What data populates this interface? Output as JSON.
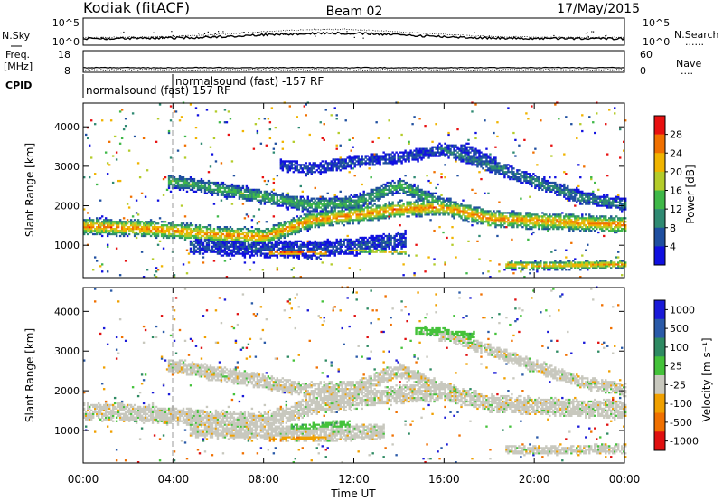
{
  "header": {
    "station": "Kodiak (fitACF)",
    "beam": "Beam 02",
    "date": "17/May/2015"
  },
  "noise_panel": {
    "left_label": "N.Sky",
    "right_label": "N.Search",
    "right_legend": "......",
    "y_ticks": [
      "10^5",
      "10^0"
    ],
    "y_tick_values": [
      100000,
      1
    ]
  },
  "freq_panel": {
    "left_label_1": "Freq.",
    "left_label_2": "[MHz]",
    "right_label": "Nave",
    "right_legend": "....",
    "left_ticks": [
      "18",
      "8"
    ],
    "right_ticks": [
      "60",
      "0"
    ]
  },
  "cpid": {
    "label": "CPID",
    "segments": [
      {
        "text": "normalsound (fast) 157 RF",
        "start": "00:00",
        "end": "04:00"
      },
      {
        "text": "normalsound (fast) -157 RF",
        "start": "04:00",
        "end": "24:00"
      }
    ]
  },
  "chart_data": [
    {
      "type": "heatmap",
      "parameter": "Power",
      "ylabel": "Slant Range [km]",
      "ylim": [
        180,
        4600
      ],
      "y_ticks": [
        "1000",
        "2000",
        "3000",
        "4000"
      ],
      "y_tick_values": [
        1000,
        2000,
        3000,
        4000
      ],
      "x_ticks": [
        "00:00",
        "04:00",
        "08:00",
        "12:00",
        "16:00",
        "20:00",
        "00:00"
      ],
      "x_tick_hours": [
        0,
        4,
        8,
        12,
        16,
        20,
        24
      ],
      "colorbar": {
        "label": "Power [dB]",
        "ticks": [
          "4",
          "8",
          "12",
          "16",
          "20",
          "24",
          "28"
        ],
        "tick_values": [
          4,
          8,
          12,
          16,
          20,
          24,
          28
        ],
        "range": [
          0,
          32
        ],
        "colors": [
          "#1010e0",
          "#1f4fa0",
          "#2f8a72",
          "#3fb848",
          "#b4cc2a",
          "#f0b400",
          "#f07000",
          "#e81010"
        ]
      },
      "bands": [
        {
          "x": [
            0,
            2,
            4,
            6,
            8,
            10,
            12,
            14,
            16,
            18,
            20,
            22,
            24
          ],
          "y": [
            1450,
            1430,
            1350,
            1250,
            1200,
            1600,
            1750,
            1900,
            1950,
            1650,
            1600,
            1550,
            1500
          ],
          "half_width": 150,
          "value": 26
        },
        {
          "x": [
            8.5,
            9.5,
            10.5
          ],
          "y": [
            800,
            800,
            800
          ],
          "half_width": 60,
          "value": 30
        },
        {
          "x": [
            12,
            13,
            14
          ],
          "y": [
            850,
            830,
            800
          ],
          "half_width": 40,
          "value": 22
        },
        {
          "x": [
            19,
            20,
            21,
            22,
            24
          ],
          "y": [
            480,
            460,
            470,
            480,
            500
          ],
          "half_width": 80,
          "value": 24
        },
        {
          "x": [
            4,
            6,
            8,
            10,
            12,
            14,
            16
          ],
          "y": [
            2600,
            2400,
            2200,
            2000,
            2050,
            2500,
            2000
          ],
          "half_width": 130,
          "value": 14
        },
        {
          "x": [
            16,
            18,
            20,
            22,
            24
          ],
          "y": [
            3400,
            3000,
            2600,
            2200,
            2000
          ],
          "half_width": 120,
          "value": 10
        },
        {
          "x": [
            9,
            10,
            12,
            14,
            16,
            17,
            18
          ],
          "y": [
            3000,
            2900,
            3100,
            3200,
            3400,
            3400,
            3100
          ],
          "half_width": 110,
          "value": 6
        },
        {
          "x": [
            5,
            6,
            8,
            10,
            12,
            14
          ],
          "y": [
            1000,
            950,
            900,
            850,
            950,
            1100
          ],
          "half_width": 160,
          "value": 6
        }
      ]
    },
    {
      "type": "heatmap",
      "parameter": "Velocity",
      "ylabel": "Slant Range [km]",
      "ylim": [
        180,
        4600
      ],
      "y_ticks": [
        "1000",
        "2000",
        "3000",
        "4000"
      ],
      "y_tick_values": [
        1000,
        2000,
        3000,
        4000
      ],
      "x_ticks": [
        "00:00",
        "04:00",
        "08:00",
        "12:00",
        "16:00",
        "20:00",
        "00:00"
      ],
      "x_tick_hours": [
        0,
        4,
        8,
        12,
        16,
        20,
        24
      ],
      "xlabel": "Time UT",
      "colorbar": {
        "label": "Velocity [m s⁻¹]",
        "ticks": [
          "1000",
          "500",
          "100",
          "25",
          "-25",
          "-100",
          "-500",
          "-1000"
        ],
        "tick_values": [
          1000,
          500,
          100,
          25,
          -25,
          -100,
          -500,
          -1000
        ],
        "colors": [
          "#1a1ad8",
          "#2a5aa8",
          "#2e8a62",
          "#44c23a",
          "#c8c8be",
          "#f0a000",
          "#f07000",
          "#e01010"
        ]
      },
      "bands": [
        {
          "x": [
            0,
            2,
            4,
            6,
            8,
            10,
            12,
            14,
            16,
            18,
            20,
            22,
            24
          ],
          "y": [
            1450,
            1430,
            1350,
            1250,
            1200,
            1600,
            1750,
            1900,
            1950,
            1650,
            1600,
            1550,
            1500
          ],
          "half_width": 160,
          "class": 4
        },
        {
          "x": [
            8.5,
            9.5,
            10.5
          ],
          "y": [
            800,
            800,
            800
          ],
          "half_width": 60,
          "class": 5
        },
        {
          "x": [
            9.5,
            10.5,
            11.5
          ],
          "y": [
            1050,
            1100,
            1150
          ],
          "half_width": 60,
          "class": 3
        },
        {
          "x": [
            19,
            20,
            21,
            22,
            24
          ],
          "y": [
            500,
            480,
            480,
            500,
            520
          ],
          "half_width": 80,
          "class": 4
        },
        {
          "x": [
            4,
            6,
            8,
            10,
            12,
            14,
            16
          ],
          "y": [
            2600,
            2400,
            2200,
            2000,
            2050,
            2500,
            2000
          ],
          "half_width": 130,
          "class": 4
        },
        {
          "x": [
            16,
            18,
            20,
            22,
            24
          ],
          "y": [
            3400,
            3000,
            2600,
            2200,
            2000
          ],
          "half_width": 110,
          "class": 4
        },
        {
          "x": [
            15,
            16,
            17
          ],
          "y": [
            3500,
            3450,
            3350
          ],
          "half_width": 80,
          "class": 3
        },
        {
          "x": [
            5,
            7,
            9,
            11,
            13
          ],
          "y": [
            1000,
            950,
            900,
            900,
            950
          ],
          "half_width": 140,
          "class": 4
        }
      ]
    }
  ]
}
